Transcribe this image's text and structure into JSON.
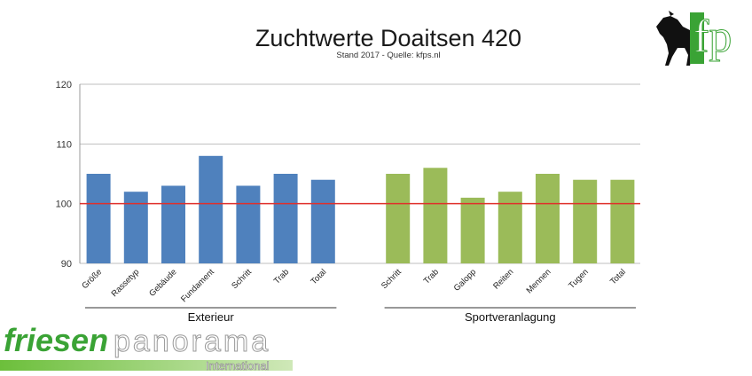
{
  "chart_data": {
    "type": "bar",
    "title": "Zuchtwerte Doaitsen 420",
    "subtitle": "Stand 2017 - Quelle: kfps.nl",
    "xlabel": "",
    "ylabel": "",
    "ylim": [
      90,
      120
    ],
    "yticks": [
      90,
      100,
      110,
      120
    ],
    "reference_line": {
      "value": 100,
      "color": "#e0302b"
    },
    "grid": true,
    "legend": "none",
    "groups": [
      {
        "label": "Exterieur",
        "color": "#4f81bd",
        "categories": [
          "Größe",
          "Rassetyp",
          "Gebäude",
          "Fundament",
          "Schritt",
          "Trab",
          "Total"
        ],
        "values": [
          105,
          102,
          103,
          108,
          103,
          105,
          104
        ]
      },
      {
        "label": "Sportveranlagung",
        "color": "#9bbb59",
        "categories": [
          "Schritt",
          "Trab",
          "Galopp",
          "Reiten",
          "Mennen",
          "Tugen",
          "Total"
        ],
        "values": [
          105,
          106,
          101,
          102,
          105,
          104,
          104
        ]
      }
    ]
  },
  "logos": {
    "kfp": {
      "text": "fp",
      "description_icon": "horse-silhouette-icon"
    },
    "friesen": {
      "word1": "friesen",
      "word2": "panorama",
      "word3": "International"
    }
  }
}
